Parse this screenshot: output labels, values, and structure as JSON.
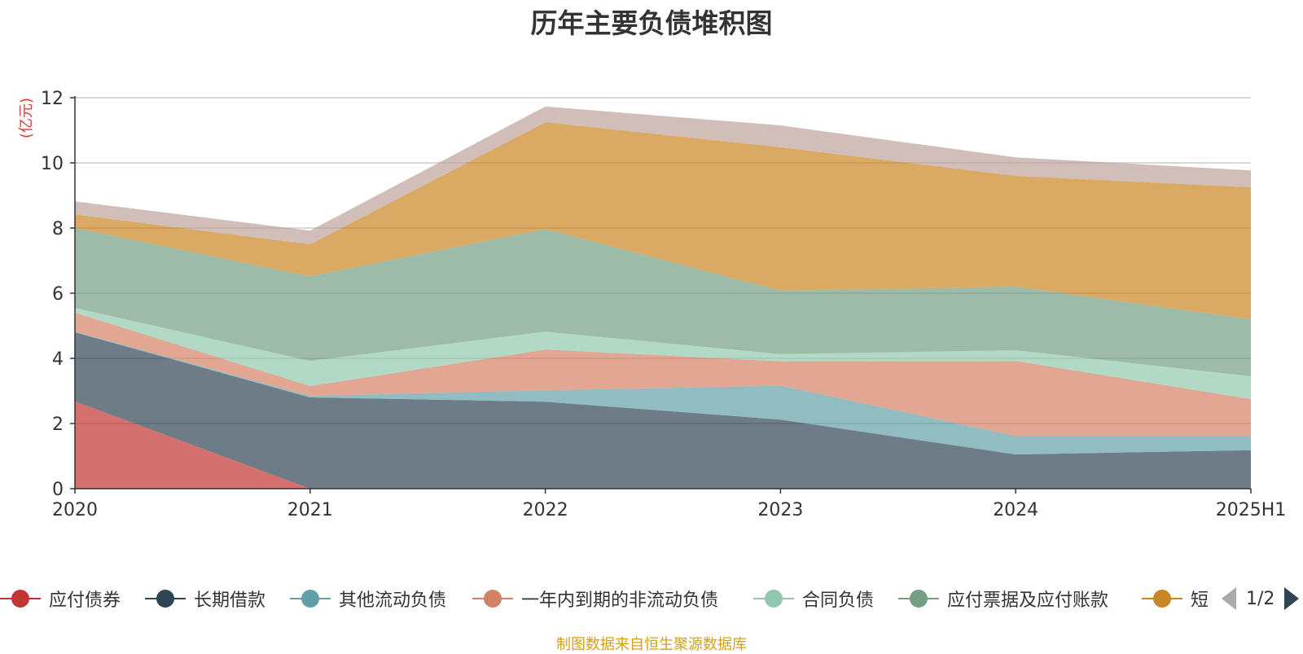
{
  "chart_data": {
    "type": "area",
    "title": "历年主要负债堆积图",
    "unit_label": "(亿元)",
    "categories": [
      "2020",
      "2021",
      "2022",
      "2023",
      "2024",
      "2025H1"
    ],
    "ylim": [
      0,
      12
    ],
    "yticks": [
      "0",
      "2",
      "4",
      "6",
      "8",
      "10",
      "12"
    ],
    "grid": true,
    "legend_position": "bottom",
    "series": [
      {
        "name": "应付债券",
        "color": "#c23531",
        "values": [
          2.68,
          0,
          0,
          0,
          0,
          0
        ]
      },
      {
        "name": "长期借款",
        "color": "#2f4554",
        "values": [
          2.12,
          2.8,
          2.67,
          2.12,
          1.05,
          1.18
        ]
      },
      {
        "name": "其他流动负债",
        "color": "#61a0a8",
        "values": [
          0.02,
          0.05,
          0.35,
          1.04,
          0.57,
          0.44
        ]
      },
      {
        "name": "一年内到期的非流动负债",
        "color": "#d48265",
        "values": [
          0.58,
          0.3,
          1.25,
          0.75,
          2.3,
          1.13
        ]
      },
      {
        "name": "合同负债",
        "color": "#91c7ae",
        "values": [
          0.15,
          0.77,
          0.55,
          0.22,
          0.33,
          0.7
        ]
      },
      {
        "name": "应付票据及应付账款",
        "color": "#749f83",
        "values": [
          2.45,
          2.6,
          3.15,
          1.95,
          1.95,
          1.75
        ]
      },
      {
        "name": "短期借款",
        "color": "#ca8622",
        "values": [
          0.42,
          0.98,
          3.28,
          4.4,
          3.4,
          4.05
        ]
      },
      {
        "name": "",
        "color": "#bda29a",
        "values": [
          0.4,
          0.42,
          0.48,
          0.67,
          0.57,
          0.52
        ]
      }
    ]
  },
  "legend": {
    "items": [
      "应付债券",
      "长期借款",
      "其他流动负债",
      "一年内到期的非流动负债",
      "合同负债",
      "应付票据及应付账款",
      "短"
    ],
    "page_indicator": "1/2"
  },
  "source_text": "制图数据来自恒生聚源数据库"
}
